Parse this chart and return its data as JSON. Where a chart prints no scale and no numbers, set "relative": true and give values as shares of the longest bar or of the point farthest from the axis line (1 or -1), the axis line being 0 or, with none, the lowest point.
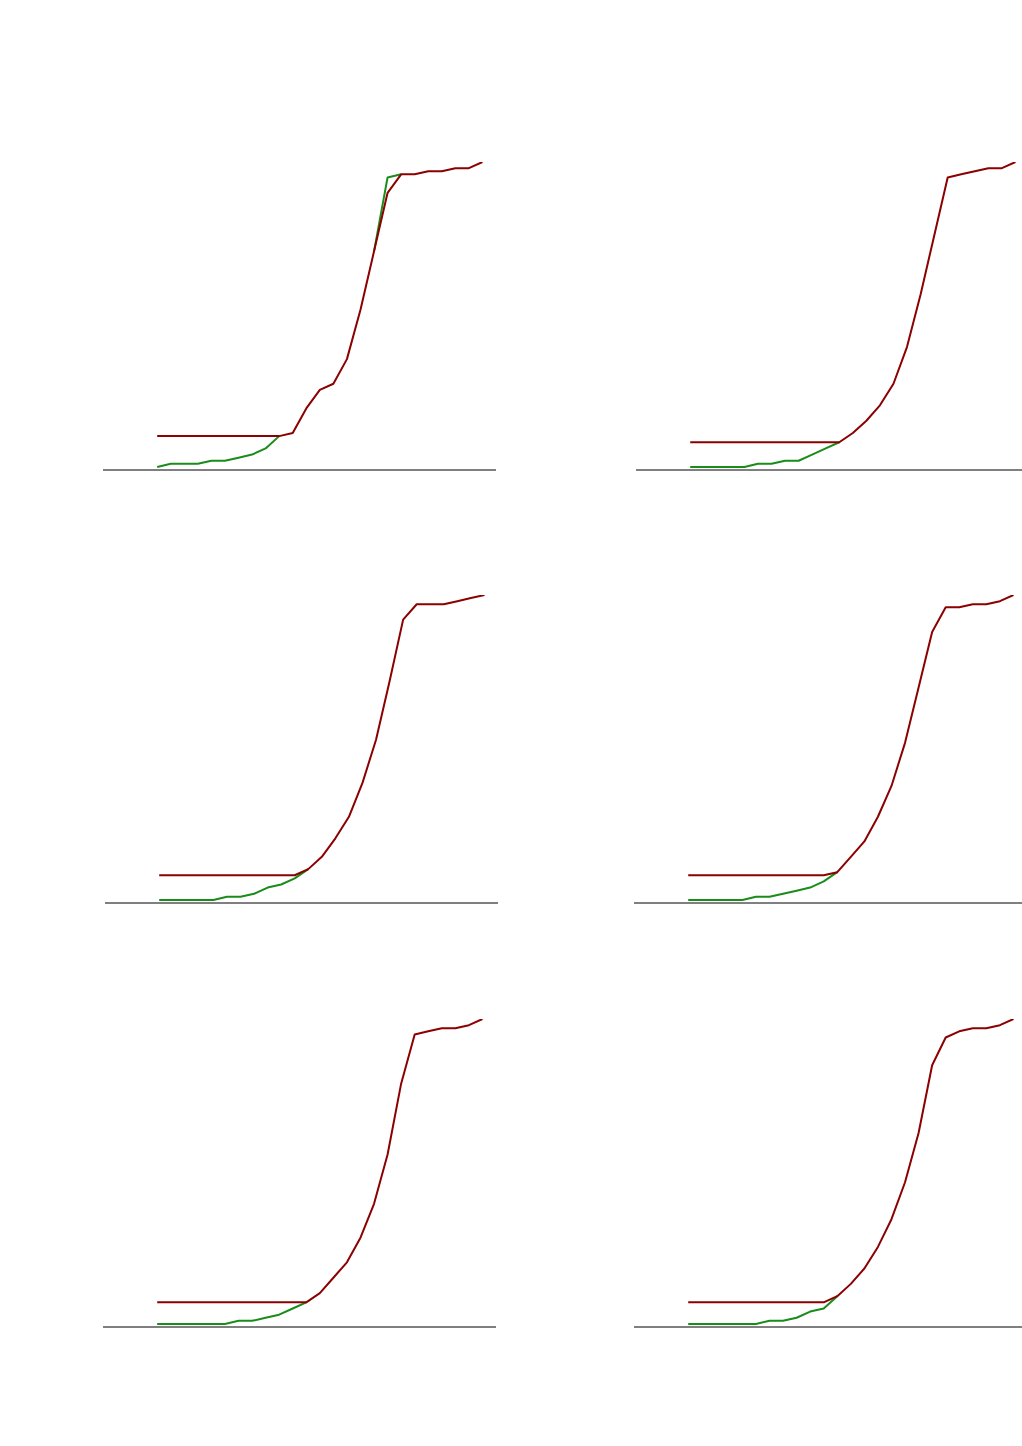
{
  "chart_data": [
    {
      "type": "line",
      "relative": true,
      "categories": [
        null,
        null,
        null,
        null,
        null,
        null,
        null,
        null,
        null,
        null,
        null,
        null,
        null,
        null,
        null,
        null,
        null,
        null,
        null,
        null,
        null,
        null,
        null,
        null,
        null,
        null,
        null,
        null,
        null,
        null
      ],
      "series": [
        {
          "color": "#1a8c1a",
          "values": [
            null,
            null,
            null,
            null,
            0.01,
            0.02,
            0.02,
            0.02,
            0.03,
            0.03,
            0.04,
            0.05,
            0.07,
            0.11,
            null,
            null,
            null,
            null,
            null,
            null,
            0.71,
            0.95,
            0.96,
            null,
            null,
            null,
            null,
            null,
            null,
            null
          ]
        },
        {
          "color": "#8b0000",
          "values": [
            null,
            null,
            null,
            null,
            0.11,
            0.11,
            0.11,
            0.11,
            0.11,
            0.11,
            0.11,
            0.11,
            0.11,
            0.11,
            0.12,
            0.2,
            0.26,
            0.28,
            0.36,
            0.52,
            0.71,
            0.9,
            0.96,
            0.96,
            0.97,
            0.97,
            0.98,
            0.98,
            1,
            null
          ]
        }
      ]
    },
    {
      "type": "line",
      "relative": true,
      "categories": [
        null,
        null,
        null,
        null,
        null,
        null,
        null,
        null,
        null,
        null,
        null,
        null,
        null,
        null,
        null,
        null,
        null,
        null,
        null,
        null,
        null,
        null,
        null,
        null,
        null,
        null,
        null,
        null,
        null,
        null
      ],
      "series": [
        {
          "color": "#1a8c1a",
          "values": [
            null,
            null,
            null,
            null,
            0.01,
            0.01,
            0.01,
            0.01,
            0.01,
            0.02,
            0.02,
            0.03,
            0.03,
            0.05,
            0.07,
            0.09,
            null,
            null,
            null,
            null,
            null,
            null,
            null,
            null,
            null,
            null,
            null,
            null,
            null,
            null
          ]
        },
        {
          "color": "#8b0000",
          "values": [
            null,
            null,
            null,
            null,
            0.09,
            0.09,
            0.09,
            0.09,
            0.09,
            0.09,
            0.09,
            0.09,
            0.09,
            0.09,
            0.09,
            0.09,
            0.12,
            0.16,
            0.21,
            0.28,
            0.4,
            0.57,
            0.76,
            0.95,
            0.96,
            0.97,
            0.98,
            0.98,
            1,
            null
          ]
        }
      ]
    },
    {
      "type": "line",
      "relative": true,
      "categories": [
        null,
        null,
        null,
        null,
        null,
        null,
        null,
        null,
        null,
        null,
        null,
        null,
        null,
        null,
        null,
        null,
        null,
        null,
        null,
        null,
        null,
        null,
        null,
        null,
        null,
        null,
        null,
        null,
        null,
        null
      ],
      "series": [
        {
          "color": "#1a8c1a",
          "values": [
            null,
            null,
            null,
            null,
            0.01,
            0.01,
            0.01,
            0.01,
            0.01,
            0.02,
            0.02,
            0.03,
            0.05,
            0.06,
            0.08,
            0.11,
            null,
            null,
            null,
            null,
            null,
            null,
            null,
            null,
            null,
            null,
            null,
            null,
            null,
            null
          ]
        },
        {
          "color": "#8b0000",
          "values": [
            null,
            null,
            null,
            null,
            0.09,
            0.09,
            0.09,
            0.09,
            0.09,
            0.09,
            0.09,
            0.09,
            0.09,
            0.09,
            0.09,
            0.11,
            0.15,
            0.21,
            0.28,
            0.39,
            0.53,
            0.72,
            0.92,
            0.97,
            0.97,
            0.97,
            0.98,
            0.99,
            1,
            null
          ]
        }
      ]
    },
    {
      "type": "line",
      "relative": true,
      "categories": [
        null,
        null,
        null,
        null,
        null,
        null,
        null,
        null,
        null,
        null,
        null,
        null,
        null,
        null,
        null,
        null,
        null,
        null,
        null,
        null,
        null,
        null,
        null,
        null,
        null,
        null,
        null,
        null,
        null,
        null
      ],
      "series": [
        {
          "color": "#1a8c1a",
          "values": [
            null,
            null,
            null,
            null,
            0.01,
            0.01,
            0.01,
            0.01,
            0.01,
            0.02,
            0.02,
            0.03,
            0.04,
            0.05,
            0.07,
            0.1,
            null,
            null,
            null,
            null,
            null,
            null,
            null,
            null,
            null,
            null,
            null,
            null,
            null,
            null
          ]
        },
        {
          "color": "#8b0000",
          "values": [
            null,
            null,
            null,
            null,
            0.09,
            0.09,
            0.09,
            0.09,
            0.09,
            0.09,
            0.09,
            0.09,
            0.09,
            0.09,
            0.09,
            0.1,
            0.15,
            0.2,
            0.28,
            0.38,
            0.52,
            0.7,
            0.88,
            0.96,
            0.96,
            0.97,
            0.97,
            0.98,
            1,
            null
          ]
        }
      ]
    },
    {
      "type": "line",
      "relative": true,
      "categories": [
        null,
        null,
        null,
        null,
        null,
        null,
        null,
        null,
        null,
        null,
        null,
        null,
        null,
        null,
        null,
        null,
        null,
        null,
        null,
        null,
        null,
        null,
        null,
        null,
        null,
        null,
        null,
        null,
        null,
        null
      ],
      "series": [
        {
          "color": "#1a8c1a",
          "values": [
            null,
            null,
            null,
            null,
            0.01,
            0.01,
            0.01,
            0.01,
            0.01,
            0.01,
            0.02,
            0.02,
            0.03,
            0.04,
            0.06,
            0.08,
            null,
            null,
            null,
            null,
            null,
            null,
            null,
            null,
            null,
            null,
            null,
            null,
            null,
            null
          ]
        },
        {
          "color": "#8b0000",
          "values": [
            null,
            null,
            null,
            null,
            0.08,
            0.08,
            0.08,
            0.08,
            0.08,
            0.08,
            0.08,
            0.08,
            0.08,
            0.08,
            0.08,
            0.08,
            0.11,
            0.16,
            0.21,
            0.29,
            0.4,
            0.56,
            0.79,
            0.95,
            0.96,
            0.97,
            0.97,
            0.98,
            1,
            null
          ]
        }
      ]
    },
    {
      "type": "line",
      "relative": true,
      "categories": [
        null,
        null,
        null,
        null,
        null,
        null,
        null,
        null,
        null,
        null,
        null,
        null,
        null,
        null,
        null,
        null,
        null,
        null,
        null,
        null,
        null,
        null,
        null,
        null,
        null,
        null,
        null,
        null,
        null,
        null
      ],
      "series": [
        {
          "color": "#1a8c1a",
          "values": [
            null,
            null,
            null,
            null,
            0.01,
            0.01,
            0.01,
            0.01,
            0.01,
            0.01,
            0.02,
            0.02,
            0.03,
            0.05,
            0.06,
            0.1,
            null,
            null,
            null,
            null,
            null,
            null,
            null,
            null,
            null,
            null,
            null,
            null,
            null,
            null
          ]
        },
        {
          "color": "#8b0000",
          "values": [
            null,
            null,
            null,
            null,
            0.08,
            0.08,
            0.08,
            0.08,
            0.08,
            0.08,
            0.08,
            0.08,
            0.08,
            0.08,
            0.08,
            0.1,
            0.14,
            0.19,
            0.26,
            0.35,
            0.47,
            0.63,
            0.85,
            0.94,
            0.96,
            0.97,
            0.97,
            0.98,
            1,
            null
          ]
        }
      ]
    }
  ]
}
